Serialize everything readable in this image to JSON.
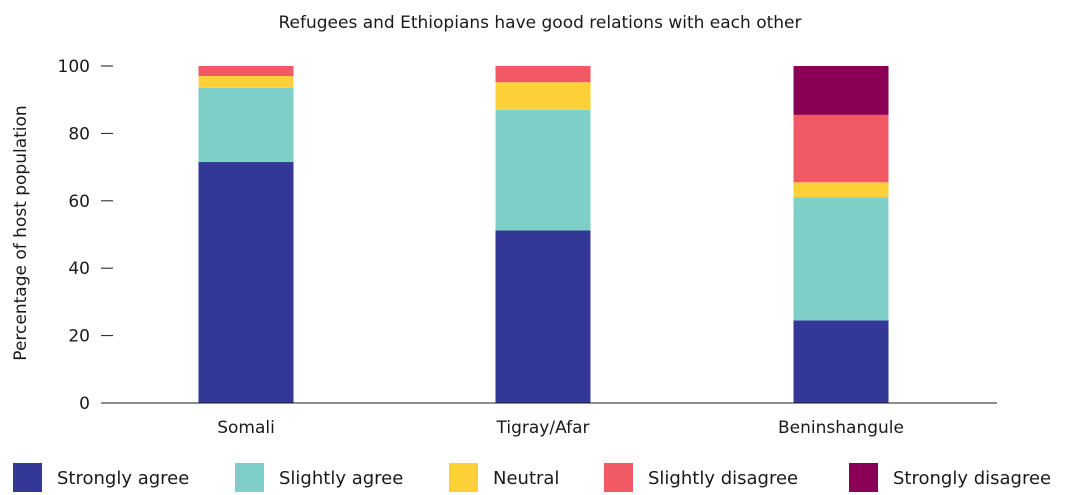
{
  "chart_data": {
    "type": "bar",
    "stacked": true,
    "title": "Refugees and Ethiopians have good relations with each other",
    "xlabel": "",
    "ylabel": "Percentage of host population",
    "ylim": [
      0,
      100
    ],
    "yticks": [
      "0",
      "20",
      "40",
      "60",
      "80",
      "100"
    ],
    "grid": false,
    "legend_position": "bottom",
    "categories": [
      "Somali",
      "Tigray/Afar",
      "Beninshangule"
    ],
    "series": [
      {
        "name": "Strongly agree",
        "color": "#333896",
        "values": [
          71.5,
          51.2,
          24.5
        ]
      },
      {
        "name": "Slightly agree",
        "color": "#7fcfc9",
        "values": [
          22.0,
          35.8,
          36.5
        ]
      },
      {
        "name": "Neutral",
        "color": "#fdd137",
        "values": [
          3.5,
          8.2,
          4.5
        ]
      },
      {
        "name": "Slightly disagree",
        "color": "#f15a65",
        "values": [
          3.0,
          4.8,
          20.0
        ]
      },
      {
        "name": "Strongly disagree",
        "color": "#8a0057",
        "values": [
          0,
          0,
          14.5
        ]
      }
    ]
  }
}
